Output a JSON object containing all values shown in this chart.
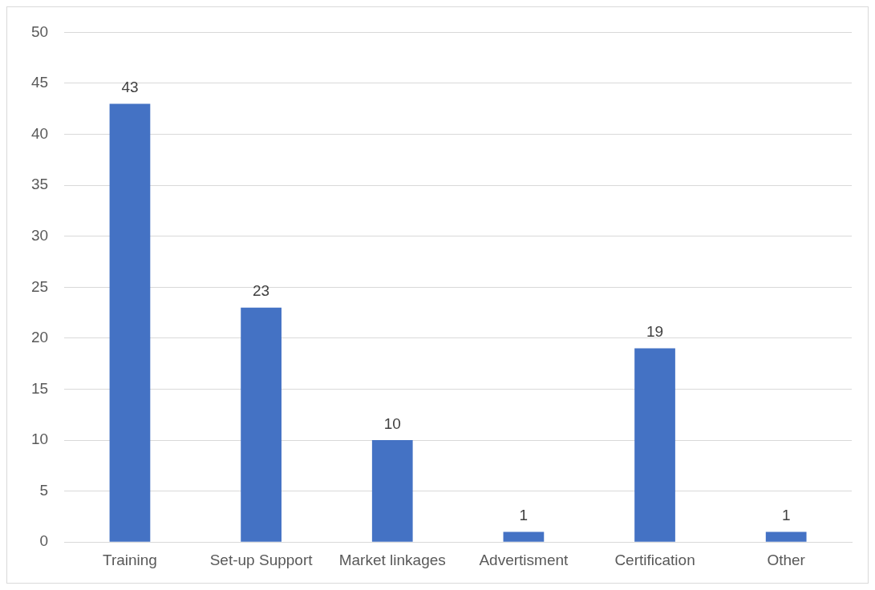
{
  "chart_data": {
    "type": "bar",
    "categories": [
      "Training",
      "Set-up Support",
      "Market linkages",
      "Advertisment",
      "Certification",
      "Other"
    ],
    "values": [
      43,
      23,
      10,
      1,
      19,
      1
    ],
    "color": "#4472c4",
    "ylim": [
      0,
      50
    ],
    "yticks": [
      0,
      5,
      10,
      15,
      20,
      25,
      30,
      35,
      40,
      45,
      50
    ],
    "grid": "y",
    "data_labels": true
  }
}
